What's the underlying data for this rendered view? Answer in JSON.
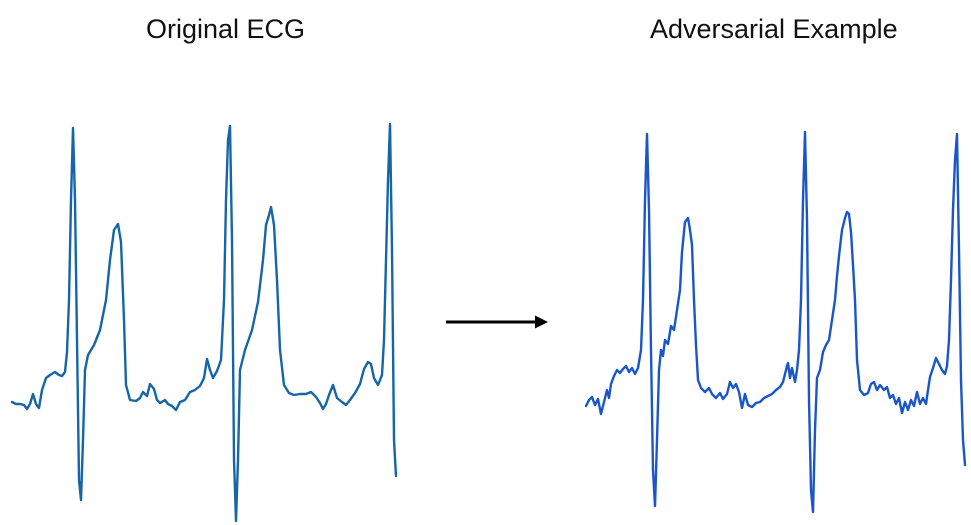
{
  "titles": {
    "left": "Original ECG",
    "right": "Adversarial Example"
  },
  "colors": {
    "original_trace": "#1565a8",
    "adversarial_trace": "#1a56c9",
    "arrow": "#000000",
    "text": "#111111"
  }
}
